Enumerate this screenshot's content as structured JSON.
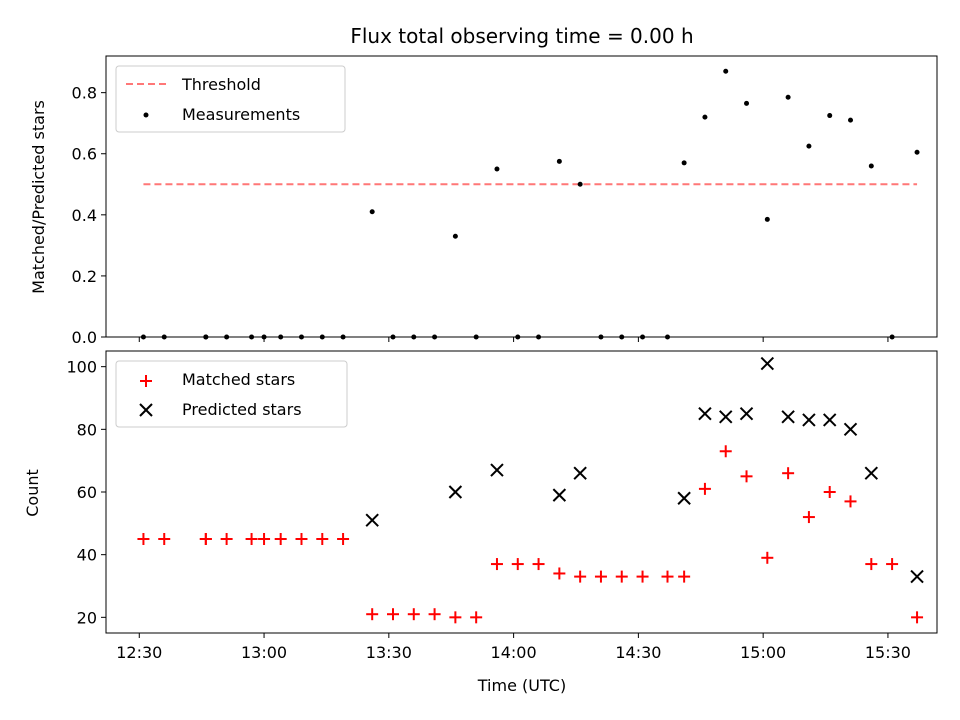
{
  "chart_data": [
    {
      "type": "scatter",
      "title": "Flux total observing time = 0.00 h",
      "ylabel": "Matched/Predicted stars",
      "xlim": [
        "12:22",
        "15:37"
      ],
      "ylim": [
        0,
        0.92
      ],
      "yticks": [
        0.0,
        0.2,
        0.4,
        0.6,
        0.8
      ],
      "yticklabels": [
        "0.0",
        "0.2",
        "0.4",
        "0.6",
        "0.8"
      ],
      "legend_position": "upper-left",
      "threshold": {
        "name": "Threshold",
        "value": 0.5,
        "x_range": [
          "12:31",
          "15:37"
        ],
        "color": "#ff7777",
        "style": "dashed"
      },
      "series": [
        {
          "name": "Measurements",
          "color": "#000000",
          "marker": "dot",
          "x": [
            "12:31",
            "12:36",
            "12:46",
            "12:46",
            "12:51",
            "12:57",
            "13:00",
            "13:04",
            "13:09",
            "13:14",
            "13:19",
            "13:26",
            "13:31",
            "13:36",
            "13:41",
            "13:46",
            "13:51",
            "13:56",
            "14:01",
            "14:06",
            "14:11",
            "14:16",
            "14:21",
            "14:26",
            "14:31",
            "14:37",
            "14:41",
            "14:46",
            "14:51",
            "14:56",
            "15:01",
            "15:06",
            "15:11",
            "15:16",
            "15:21",
            "15:26",
            "15:31",
            "15:37"
          ],
          "y": [
            0,
            0,
            0,
            0,
            0,
            0,
            0,
            0,
            0,
            0,
            0,
            0.41,
            0,
            0,
            0,
            0.33,
            0,
            0.55,
            0,
            0,
            0.575,
            0.5,
            0,
            0,
            0,
            0,
            0.57,
            0.72,
            0.87,
            0.765,
            0.385,
            0.785,
            0.625,
            0.725,
            0.71,
            0.56,
            0,
            0.605
          ]
        }
      ]
    },
    {
      "type": "scatter",
      "xlabel": "Time (UTC)",
      "ylabel": "Count",
      "xlim": [
        "12:22",
        "15:37"
      ],
      "ylim": [
        15,
        105
      ],
      "yticks": [
        20,
        40,
        60,
        80,
        100
      ],
      "yticklabels": [
        "20",
        "40",
        "60",
        "80",
        "100"
      ],
      "xticks": [
        "12:30",
        "13:00",
        "13:30",
        "14:00",
        "14:30",
        "15:00",
        "15:30"
      ],
      "xticklabels": [
        "12:30",
        "13:00",
        "13:30",
        "14:00",
        "14:30",
        "15:00",
        "15:30"
      ],
      "legend_position": "upper-left",
      "series": [
        {
          "name": "Matched stars",
          "color": "#ff0000",
          "marker": "plus",
          "x": [
            "12:31",
            "12:36",
            "12:46",
            "12:46",
            "12:51",
            "12:57",
            "13:00",
            "13:04",
            "13:09",
            "13:14",
            "13:19",
            "13:26",
            "13:31",
            "13:36",
            "13:41",
            "13:46",
            "13:51",
            "13:56",
            "14:01",
            "14:06",
            "14:11",
            "14:16",
            "14:21",
            "14:26",
            "14:31",
            "14:37",
            "14:41",
            "14:46",
            "14:51",
            "14:56",
            "15:01",
            "15:06",
            "15:11",
            "15:16",
            "15:21",
            "15:26",
            "15:31",
            "15:37"
          ],
          "y": [
            45,
            45,
            45,
            45,
            45,
            45,
            45,
            45,
            45,
            45,
            45,
            21,
            21,
            21,
            21,
            20,
            20,
            37,
            37,
            37,
            34,
            33,
            33,
            33,
            33,
            33,
            33,
            61,
            73,
            65,
            39,
            66,
            52,
            60,
            57,
            37,
            37,
            20
          ]
        },
        {
          "name": "Predicted stars",
          "color": "#000000",
          "marker": "x",
          "x": [
            "13:26",
            "13:46",
            "13:56",
            "14:11",
            "14:16",
            "14:41",
            "14:46",
            "14:51",
            "14:56",
            "15:01",
            "15:06",
            "15:11",
            "15:16",
            "15:21",
            "15:26",
            "15:37"
          ],
          "y": [
            51,
            60,
            67,
            59,
            66,
            58,
            85,
            84,
            85,
            101,
            84,
            83,
            83,
            80,
            66,
            33
          ]
        }
      ]
    }
  ]
}
